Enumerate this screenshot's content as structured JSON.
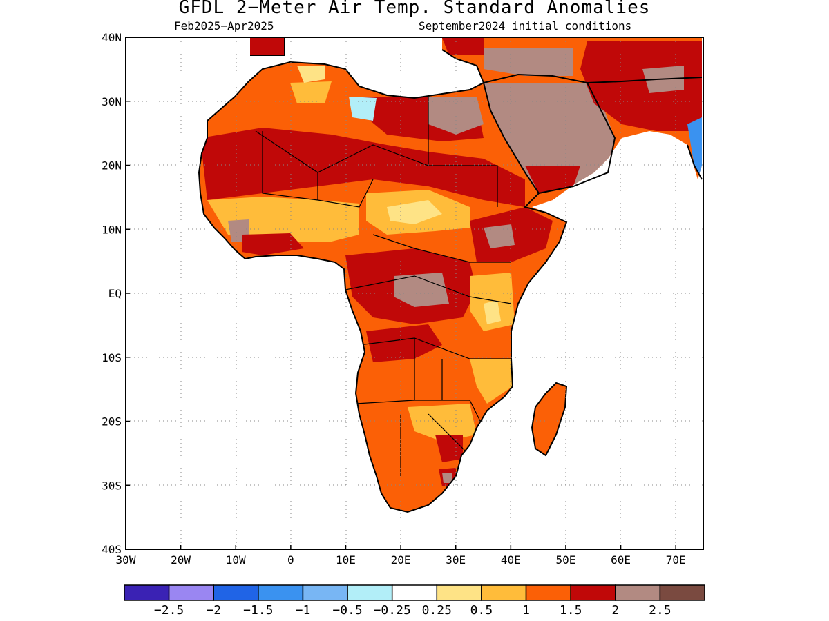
{
  "title": "GFDL 2−Meter Air Temp. Standard Anomalies",
  "subtitle_left": "Feb2025−Apr2025",
  "subtitle_right": "September2024 initial conditions",
  "map": {
    "lon_range": [
      -30,
      75
    ],
    "lat_range": [
      -40,
      40
    ],
    "grid": true,
    "x_ticks": [
      {
        "value": -30,
        "label": "30W"
      },
      {
        "value": -20,
        "label": "20W"
      },
      {
        "value": -10,
        "label": "10W"
      },
      {
        "value": 0,
        "label": "0"
      },
      {
        "value": 10,
        "label": "10E"
      },
      {
        "value": 20,
        "label": "20E"
      },
      {
        "value": 30,
        "label": "30E"
      },
      {
        "value": 40,
        "label": "40E"
      },
      {
        "value": 50,
        "label": "50E"
      },
      {
        "value": 60,
        "label": "60E"
      },
      {
        "value": 70,
        "label": "70E"
      }
    ],
    "y_ticks": [
      {
        "value": 40,
        "label": "40N"
      },
      {
        "value": 30,
        "label": "30N"
      },
      {
        "value": 20,
        "label": "20N"
      },
      {
        "value": 10,
        "label": "10N"
      },
      {
        "value": 0,
        "label": "EQ"
      },
      {
        "value": -10,
        "label": "10S"
      },
      {
        "value": -20,
        "label": "20S"
      },
      {
        "value": -30,
        "label": "30S"
      },
      {
        "value": -40,
        "label": "40S"
      }
    ]
  },
  "colorbar": {
    "colors": [
      "#3a22b4",
      "#9a86f2",
      "#2064e6",
      "#3a92f0",
      "#78b6f4",
      "#b2eef8",
      "#ffffff",
      "#fee386",
      "#ffbc3a",
      "#fb6006",
      "#c00808",
      "#b28a82",
      "#7a4a40"
    ],
    "labels": [
      "−2.5",
      "−2",
      "−1.5",
      "−1",
      "−0.5",
      "−0.25",
      "0.25",
      "0.5",
      "1",
      "1.5",
      "2",
      "2.5"
    ]
  },
  "fill_colors": {
    "ocean": "#ffffff",
    "lt_0p5": "#fee386",
    "lt_1": "#ffbc3a",
    "lt_1p5": "#fb6006",
    "lt_2": "#c00808",
    "lt_2p5": "#b28a82",
    "negative": "#3a92f0",
    "negative_light": "#b2eef8"
  }
}
